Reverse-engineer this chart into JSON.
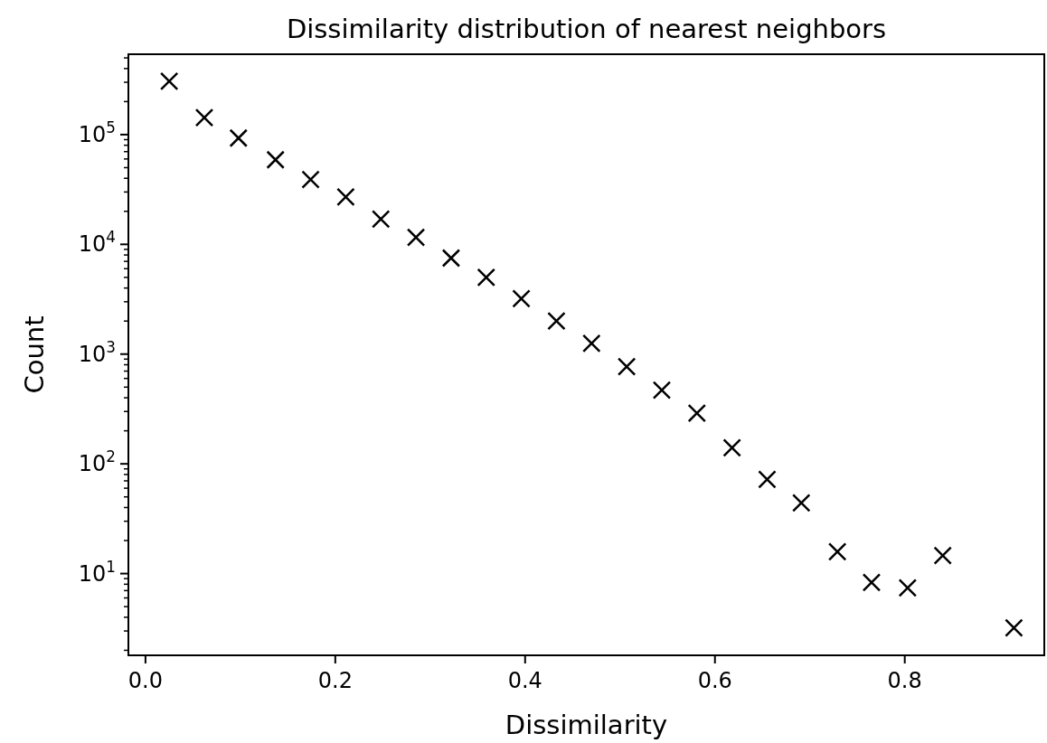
{
  "chart_data": {
    "type": "scatter",
    "title": "Dissimilarity distribution of nearest neighbors",
    "xlabel": "Dissimilarity",
    "ylabel": "Count",
    "log": "y",
    "marker": "cross",
    "grid": false,
    "x": [
      0.025,
      0.062,
      0.098,
      0.137,
      0.174,
      0.211,
      0.248,
      0.285,
      0.322,
      0.359,
      0.396,
      0.433,
      0.47,
      0.507,
      0.544,
      0.581,
      0.618,
      0.655,
      0.691,
      0.729,
      0.765,
      0.803,
      0.84,
      0.915
    ],
    "series": [
      {
        "color": "#000000",
        "values": [
          306000,
          143000,
          93000,
          59000,
          39000,
          27000,
          17000,
          11600,
          7500,
          5000,
          3200,
          2000,
          1250,
          770,
          470,
          290,
          140,
          72,
          44,
          15.8,
          8.3,
          7.4,
          14.6,
          3.2
        ]
      }
    ],
    "xlim": [
      -0.018,
      0.947
    ],
    "xticks": [
      {
        "value": 0,
        "label": "0.0"
      },
      0.2,
      0.4,
      0.6,
      0.8
    ],
    "ylim": [
      1.8,
      540000
    ],
    "yticks": [
      {
        "value": 2,
        "label": null
      },
      {
        "value": 3,
        "label": null
      },
      {
        "value": 4,
        "label": null
      },
      {
        "value": 5,
        "label": null
      },
      {
        "value": 6,
        "label": null
      },
      {
        "value": 7,
        "label": null
      },
      {
        "value": 8,
        "label": null
      },
      {
        "value": 9,
        "label": null
      },
      {
        "value": 10,
        "label": "10$^{1}$"
      },
      {
        "value": 20,
        "label": null
      },
      {
        "value": 30,
        "label": null
      },
      {
        "value": 40,
        "label": null
      },
      {
        "value": 50,
        "label": null
      },
      {
        "value": 60,
        "label": null
      },
      {
        "value": 70,
        "label": null
      },
      {
        "value": 80,
        "label": null
      },
      {
        "value": 90,
        "label": null
      },
      {
        "value": 100,
        "label": "10$^{2}$"
      },
      {
        "value": 200,
        "label": null
      },
      {
        "value": 300,
        "label": null
      },
      {
        "value": 400,
        "label": null
      },
      {
        "value": 500,
        "label": null
      },
      {
        "value": 600,
        "label": null
      },
      {
        "value": 700,
        "label": null
      },
      {
        "value": 800,
        "label": null
      },
      {
        "value": 900,
        "label": null
      },
      {
        "value": 1000,
        "label": "10$^{3}$"
      },
      {
        "value": 2000,
        "label": null
      },
      {
        "value": 3000,
        "label": null
      },
      {
        "value": 4000,
        "label": null
      },
      {
        "value": 5000,
        "label": null
      },
      {
        "value": 6000,
        "label": null
      },
      {
        "value": 7000,
        "label": null
      },
      {
        "value": 8000,
        "label": null
      },
      {
        "value": 9000,
        "label": null
      },
      {
        "value": 10000,
        "label": "10$^{4}$"
      },
      {
        "value": 20000,
        "label": null
      },
      {
        "value": 30000,
        "label": null
      },
      {
        "value": 40000,
        "label": null
      },
      {
        "value": 50000,
        "label": null
      },
      {
        "value": 60000,
        "label": null
      },
      {
        "value": 70000,
        "label": null
      },
      {
        "value": 80000,
        "label": null
      },
      {
        "value": 90000,
        "label": null
      },
      {
        "value": 100000,
        "label": "10$^{5}$"
      },
      {
        "value": 200000,
        "label": null
      },
      {
        "value": 300000,
        "label": null
      },
      {
        "value": 400000,
        "label": null
      },
      {
        "value": 500000,
        "label": null
      }
    ]
  }
}
